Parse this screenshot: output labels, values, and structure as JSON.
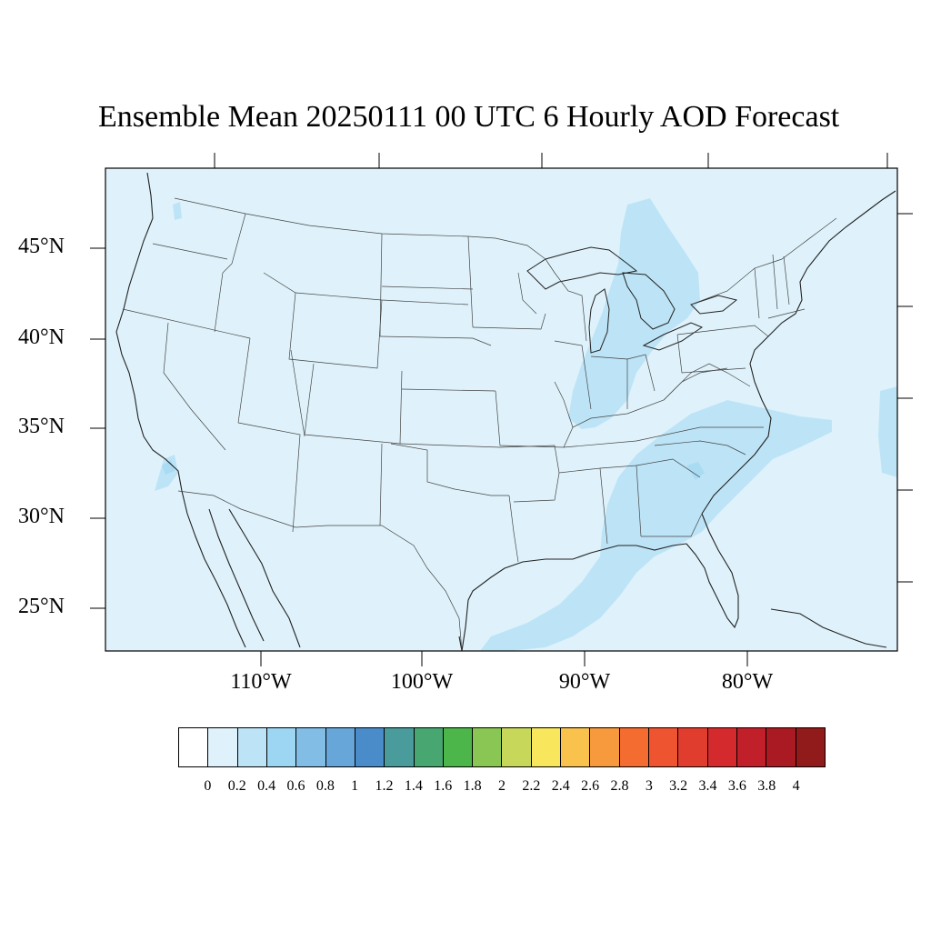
{
  "title": "Ensemble Mean 20250111 00 UTC 6 Hourly AOD Forecast",
  "map": {
    "lat_labels": [
      "45°N",
      "40°N",
      "35°N",
      "30°N",
      "25°N"
    ],
    "lon_labels": [
      "110°W",
      "100°W",
      "90°W",
      "80°W"
    ],
    "colors": {
      "background": "#dff2fb",
      "plume": "#bde4f6",
      "border": "#333333"
    }
  },
  "colorbar": {
    "colors": [
      "#ffffff",
      "#dff2fb",
      "#bde4f6",
      "#9dd6f3",
      "#82bde5",
      "#66a6d9",
      "#4a8bc9",
      "#4a9c9c",
      "#48a671",
      "#4db64a",
      "#8ac653",
      "#c7d75a",
      "#f8e65c",
      "#f8c24d",
      "#f79a3d",
      "#f46c2f",
      "#ee5430",
      "#e13d2f",
      "#d52a2d",
      "#c11f2a",
      "#aa1a22",
      "#911a1a"
    ],
    "labels": [
      "0",
      "0.2",
      "0.4",
      "0.6",
      "0.8",
      "1",
      "1.2",
      "1.4",
      "1.6",
      "1.8",
      "2",
      "2.2",
      "2.4",
      "2.6",
      "2.8",
      "3",
      "3.2",
      "3.4",
      "3.6",
      "3.8",
      "4"
    ]
  }
}
